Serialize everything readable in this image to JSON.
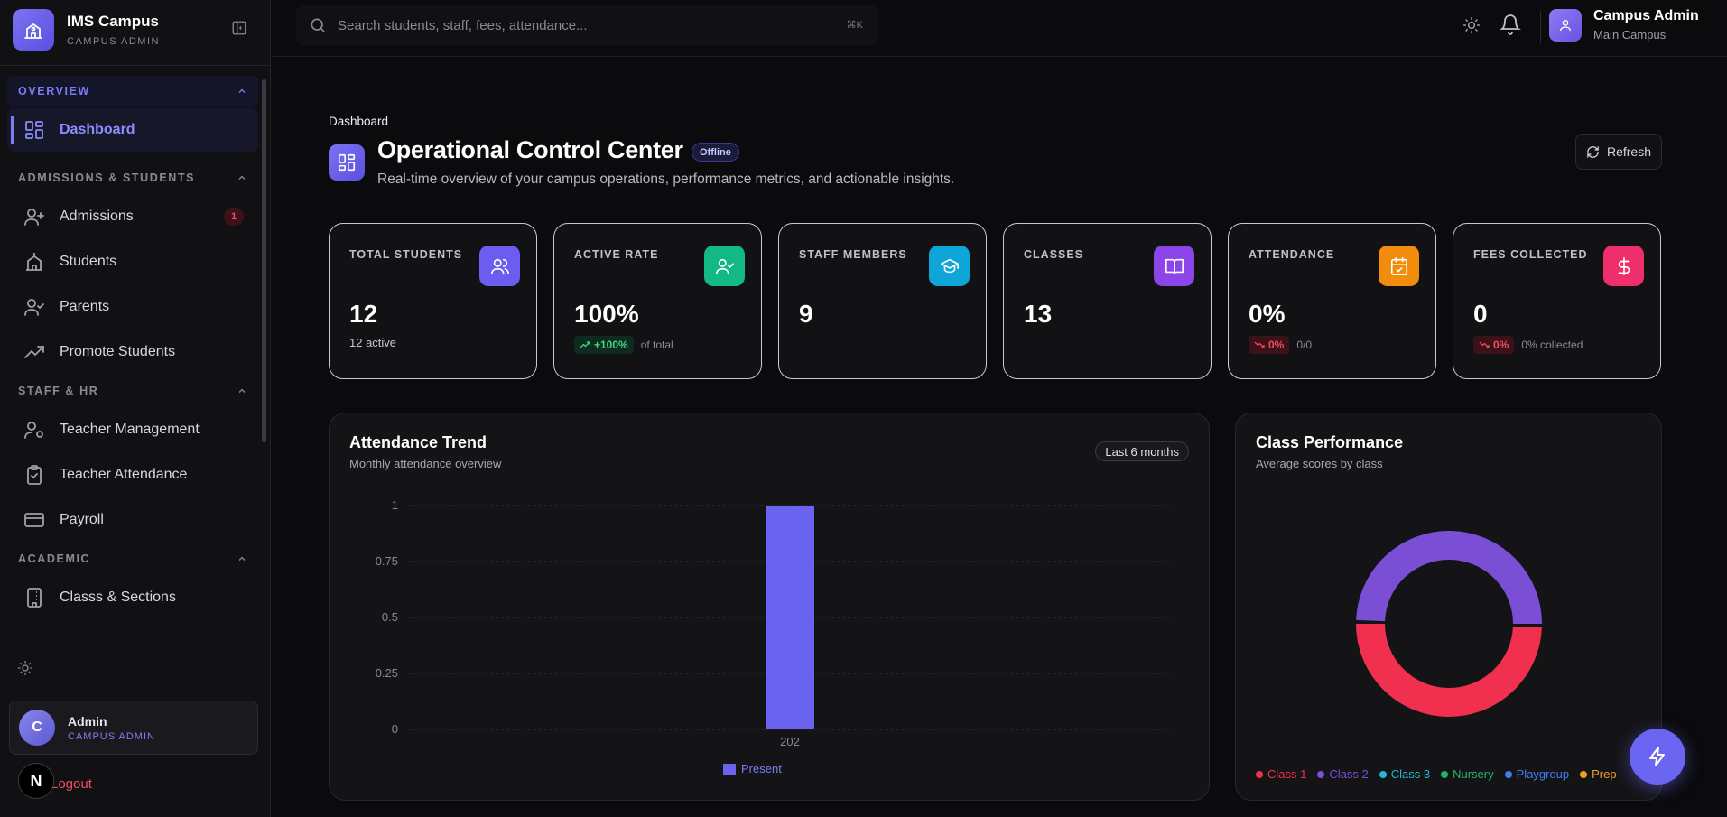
{
  "brand": {
    "title": "IMS Campus",
    "subtitle": "CAMPUS ADMIN"
  },
  "search": {
    "placeholder": "Search students, staff, fees, attendance...",
    "shortcut": "⌘K"
  },
  "user": {
    "name": "Campus Admin",
    "campus": "Main Campus"
  },
  "sidebar": {
    "sections": [
      {
        "label": "OVERVIEW"
      },
      {
        "label": "ADMISSIONS & STUDENTS"
      },
      {
        "label": "STAFF & HR"
      },
      {
        "label": "ACADEMIC"
      }
    ],
    "items": {
      "dashboard": "Dashboard",
      "admissions": "Admissions",
      "admissions_badge": "1",
      "students": "Students",
      "parents": "Parents",
      "promote": "Promote Students",
      "teacher_mgmt": "Teacher Management",
      "teacher_att": "Teacher Attendance",
      "payroll": "Payroll",
      "classes": "Classs & Sections"
    },
    "account": {
      "initial": "C",
      "name": "Admin",
      "role": "CAMPUS ADMIN",
      "logout": "Logout",
      "app_badge": "N"
    }
  },
  "header": {
    "breadcrumb": "Dashboard",
    "title": "Operational Control Center",
    "status": "Offline",
    "subtitle": "Real-time overview of your campus operations, performance metrics, and actionable insights.",
    "refresh_label": "Refresh"
  },
  "stats": [
    {
      "label": "TOTAL STUDENTS",
      "value": "12",
      "sub": "12 active",
      "icon": "users-icon",
      "color": "#6d5cf0"
    },
    {
      "label": "ACTIVE RATE",
      "value": "100%",
      "trend": "+100%",
      "trend_note": "of total",
      "icon": "user-check-icon",
      "color": "#12b886"
    },
    {
      "label": "STAFF MEMBERS",
      "value": "9",
      "icon": "graduation-cap-icon",
      "color": "#0ea5d9"
    },
    {
      "label": "CLASSES",
      "value": "13",
      "icon": "book-open-icon",
      "color": "#8b45e8"
    },
    {
      "label": "ATTENDANCE",
      "value": "0%",
      "trend": "0%",
      "trend_note": "0/0",
      "icon": "calendar-check-icon",
      "color": "#f28c0c"
    },
    {
      "label": "FEES COLLECTED",
      "value": "0",
      "trend": "0%",
      "trend_note": "0% collected",
      "icon": "dollar-icon",
      "color": "#ef2e6c"
    }
  ],
  "attendance_panel": {
    "title": "Attendance Trend",
    "subtitle": "Monthly attendance overview",
    "range": "Last 6 months"
  },
  "class_panel": {
    "title": "Class Performance",
    "subtitle": "Average scores by class"
  },
  "chart_data": [
    {
      "type": "bar",
      "categories": [
        "202"
      ],
      "series": [
        {
          "name": "Present",
          "values": [
            1
          ]
        }
      ],
      "ylim": [
        0,
        1
      ],
      "yticks": [
        "0",
        "0.25",
        "0.5",
        "0.75",
        "1"
      ],
      "grid": true,
      "legend": "bottom",
      "color": "#6a63ef"
    },
    {
      "type": "pie",
      "donut": true,
      "labels": [
        "Class 1",
        "Class 2",
        "Class 3",
        "Nursery",
        "Playgroup",
        "Prep"
      ],
      "values": [
        50,
        50,
        0,
        0,
        0,
        0
      ],
      "colors": [
        "#f0304e",
        "#7a4fd6",
        "#22b8d6",
        "#21b56b",
        "#3f7ef0",
        "#f0a020"
      ],
      "legend": "bottom"
    }
  ]
}
